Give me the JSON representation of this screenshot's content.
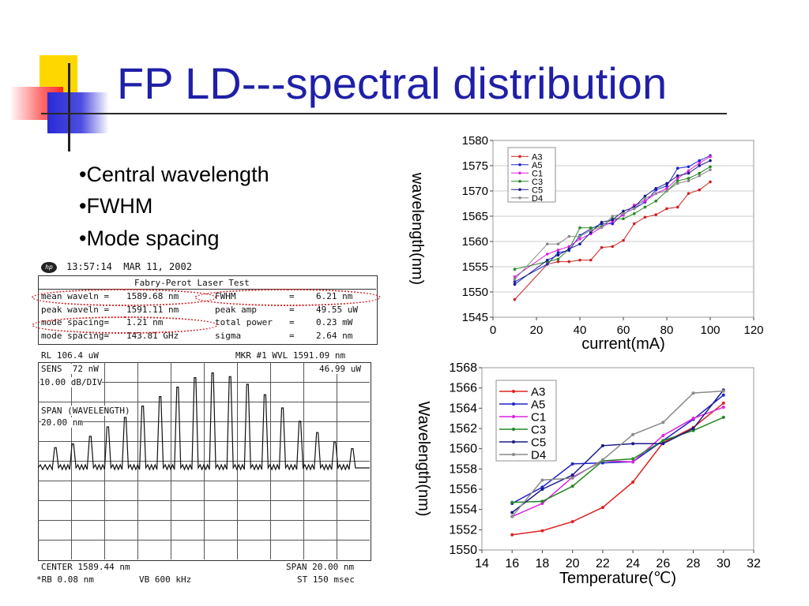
{
  "slide": {
    "title": "FP LD---spectral distribution",
    "bullets": [
      "•Central wavelength",
      "•FWHM",
      "•Mode spacing"
    ]
  },
  "analyzer": {
    "timestamp": "13:57:14  MAR 11, 2002",
    "test_title": "Fabry-Perot Laser Test",
    "rows": [
      {
        "left_label": "mean waveln =",
        "left_value": "1589.68 nm",
        "right_label": "FWHM",
        "right_sep": "=",
        "right_value": "6.21 nm"
      },
      {
        "left_label": "peak waveln =",
        "left_value": "1591.11 nm",
        "right_label": "peak amp",
        "right_sep": "=",
        "right_value": "49.55 uW"
      },
      {
        "left_label": "mode spacing=",
        "left_value": "1.21 nm",
        "right_label": "total power",
        "right_sep": "=",
        "right_value": "0.23 mW"
      },
      {
        "left_label": "mode spacing=",
        "left_value": "143.81 GHz",
        "right_label": "sigma",
        "right_sep": "=",
        "right_value": "2.64 nm"
      }
    ],
    "rl": "RL 106.4 uW",
    "marker": "MKR #1 WVL 1591.09 nm",
    "marker_amp": "46.99 uW",
    "sens": "SENS  72 nW",
    "scale": "10.00 dB/DIV",
    "span_label": "SPAN (WAVELENGTH)",
    "span_value": "20.00 nm",
    "center": "CENTER 1589.44 nm",
    "span_bottom": "SPAN 20.00 nm",
    "rb": "*RB 0.08 nm",
    "vb": "VB 600 kHz",
    "st": "ST 150 msec",
    "peaks": [
      0.18,
      0.22,
      0.3,
      0.4,
      0.5,
      0.62,
      0.72,
      0.82,
      0.92,
      0.97,
      0.93,
      0.85,
      0.74,
      0.6,
      0.46,
      0.34,
      0.24,
      0.17
    ]
  },
  "chart_data": [
    {
      "type": "line",
      "xlabel": "current(mA)",
      "ylabel": "wavelength(nm)",
      "xlim": [
        0,
        120
      ],
      "ylim": [
        1545,
        1580
      ],
      "xticks": [
        "0",
        "20",
        "40",
        "60",
        "80",
        "100",
        "120"
      ],
      "yticks": [
        "1545",
        "1550",
        "1555",
        "1560",
        "1565",
        "1570",
        "1575",
        "1580"
      ],
      "legend_position": "top-left",
      "series": [
        {
          "name": "A3",
          "color": "#cc2222",
          "x": [
            10,
            25,
            30,
            35,
            40,
            45,
            50,
            55,
            60,
            65,
            70,
            75,
            80,
            85,
            90,
            95,
            100
          ],
          "y": [
            1548.5,
            1555.5,
            1556,
            1556,
            1556.3,
            1556.3,
            1558.8,
            1559,
            1560.2,
            1563.5,
            1564.8,
            1565.3,
            1566.5,
            1566.8,
            1569.5,
            1570.2,
            1571.8
          ]
        },
        {
          "name": "A5",
          "color": "#2222cc",
          "x": [
            10,
            25,
            30,
            35,
            40,
            45,
            50,
            55,
            60,
            65,
            70,
            75,
            80,
            85,
            90,
            95,
            100
          ],
          "y": [
            1552,
            1555.5,
            1557.8,
            1558.2,
            1561.2,
            1562.5,
            1563.5,
            1563.5,
            1565.5,
            1566.5,
            1567.8,
            1570.2,
            1571,
            1574.5,
            1574.8,
            1576,
            1577
          ]
        },
        {
          "name": "C1",
          "color": "#dd22dd",
          "x": [
            10,
            25,
            30,
            35,
            40,
            45,
            50,
            55,
            60,
            65,
            70,
            75,
            80,
            85,
            90,
            95,
            100
          ],
          "y": [
            1553,
            1557.5,
            1558.3,
            1559,
            1560.5,
            1561.5,
            1562.8,
            1564,
            1565.2,
            1567.2,
            1568,
            1569.5,
            1570.5,
            1572.5,
            1574,
            1575.5,
            1576.8
          ]
        },
        {
          "name": "C3",
          "color": "#228822",
          "x": [
            10,
            25,
            30,
            35,
            40,
            45,
            50,
            55,
            60,
            65,
            70,
            75,
            80,
            85,
            90,
            95,
            100
          ],
          "y": [
            1554.5,
            1556,
            1556.5,
            1558.5,
            1562.7,
            1562.7,
            1563,
            1564.5,
            1564.5,
            1565.5,
            1566.8,
            1568,
            1570,
            1572,
            1572.5,
            1573.5,
            1574.8
          ]
        },
        {
          "name": "C5",
          "color": "#1a1a88",
          "x": [
            10,
            25,
            30,
            35,
            40,
            45,
            50,
            55,
            60,
            65,
            70,
            75,
            80,
            85,
            90,
            95,
            100
          ],
          "y": [
            1551.5,
            1556.3,
            1557.3,
            1558.5,
            1559.5,
            1561.8,
            1563.8,
            1564.3,
            1566,
            1566.8,
            1569,
            1570.5,
            1571.5,
            1573,
            1573.5,
            1575,
            1576
          ]
        },
        {
          "name": "D4",
          "color": "#888888",
          "x": [
            10,
            25,
            30,
            35,
            40,
            45,
            50,
            55,
            60,
            65,
            70,
            75,
            80,
            85,
            90,
            95,
            100
          ],
          "y": [
            1552.5,
            1559.5,
            1559.5,
            1561,
            1561,
            1562.2,
            1562.8,
            1565,
            1565.5,
            1566.5,
            1568.5,
            1569.5,
            1570,
            1571.5,
            1572,
            1573,
            1574.2
          ]
        }
      ]
    },
    {
      "type": "line",
      "xlabel": "Temperature(℃)",
      "ylabel": "Wavelength(nm)",
      "xlim": [
        14,
        32
      ],
      "ylim": [
        1550,
        1568
      ],
      "xticks": [
        "14",
        "16",
        "18",
        "20",
        "22",
        "24",
        "26",
        "28",
        "30",
        "32"
      ],
      "yticks": [
        "1550",
        "1552",
        "1554",
        "1556",
        "1558",
        "1560",
        "1562",
        "1564",
        "1566",
        "1568"
      ],
      "legend_position": "top-left",
      "series": [
        {
          "name": "A3",
          "color": "#dd2222",
          "x": [
            16,
            18,
            20,
            22,
            24,
            26,
            28,
            30
          ],
          "y": [
            1551.5,
            1551.9,
            1552.8,
            1554.2,
            1556.7,
            1560.6,
            1562.1,
            1564.5
          ]
        },
        {
          "name": "A5",
          "color": "#2222cc",
          "x": [
            16,
            18,
            20,
            22,
            24,
            26,
            28,
            30
          ],
          "y": [
            1554.6,
            1556.2,
            1558.5,
            1558.6,
            1558.7,
            1560.8,
            1562.9,
            1565.3
          ]
        },
        {
          "name": "C1",
          "color": "#dd22dd",
          "x": [
            16,
            18,
            20,
            22,
            24,
            26,
            28,
            30
          ],
          "y": [
            1553.3,
            1554.6,
            1557.2,
            1558.8,
            1558.7,
            1561.3,
            1563.0,
            1564.1
          ]
        },
        {
          "name": "C3",
          "color": "#228822",
          "x": [
            16,
            18,
            20,
            22,
            24,
            26,
            28,
            30
          ],
          "y": [
            1554.7,
            1554.8,
            1556.3,
            1558.8,
            1559.0,
            1560.8,
            1561.8,
            1563.1
          ]
        },
        {
          "name": "C5",
          "color": "#1a1a88",
          "x": [
            16,
            18,
            20,
            22,
            24,
            26,
            28,
            30
          ],
          "y": [
            1553.7,
            1556.0,
            1557.4,
            1560.3,
            1560.5,
            1560.5,
            1562.0,
            1565.8
          ]
        },
        {
          "name": "D4",
          "color": "#8a8a8a",
          "x": [
            16,
            18,
            20,
            22,
            24,
            26,
            28,
            30
          ],
          "y": [
            1553.3,
            1556.9,
            1557.1,
            1558.9,
            1561.4,
            1562.6,
            1565.5,
            1565.7
          ]
        }
      ]
    }
  ]
}
